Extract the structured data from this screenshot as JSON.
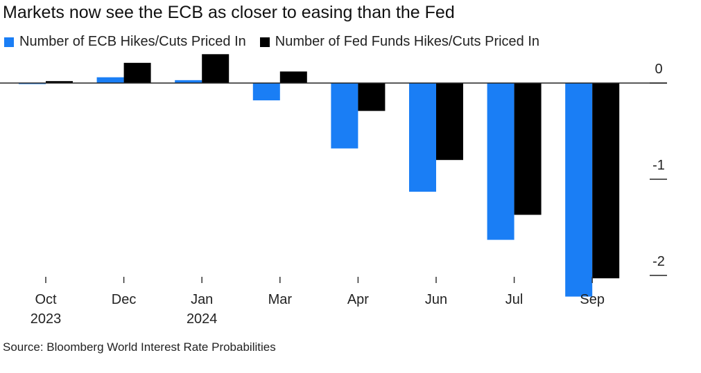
{
  "chart_data": {
    "type": "bar",
    "title": "Markets now see the ECB as closer to easing than the Fed",
    "categories": [
      {
        "line1": "Oct",
        "line2": "2023"
      },
      {
        "line1": "Dec",
        "line2": ""
      },
      {
        "line1": "Jan",
        "line2": "2024"
      },
      {
        "line1": "Mar",
        "line2": ""
      },
      {
        "line1": "Apr",
        "line2": ""
      },
      {
        "line1": "Jun",
        "line2": ""
      },
      {
        "line1": "Jul",
        "line2": ""
      },
      {
        "line1": "Sep",
        "line2": ""
      }
    ],
    "series": [
      {
        "name": "Number of ECB Hikes/Cuts Priced In",
        "color": "#1a7ef5",
        "values": [
          -0.01,
          0.06,
          0.03,
          -0.18,
          -0.68,
          -1.13,
          -1.63,
          -2.22
        ]
      },
      {
        "name": "Number of Fed Funds Hikes/Cuts Priced In",
        "color": "#000000",
        "values": [
          0.02,
          0.21,
          0.3,
          0.12,
          -0.29,
          -0.8,
          -1.37,
          -2.03
        ]
      }
    ],
    "yticks": [
      {
        "value": 0,
        "label": "0"
      },
      {
        "value": -1,
        "label": "-1"
      },
      {
        "value": -2,
        "label": "-2"
      }
    ],
    "ylim": [
      -2.25,
      0.32
    ],
    "axis_position": "right",
    "grid": false,
    "legend_position": "top-left"
  },
  "source": "Source: Bloomberg World Interest Rate Probabilities"
}
